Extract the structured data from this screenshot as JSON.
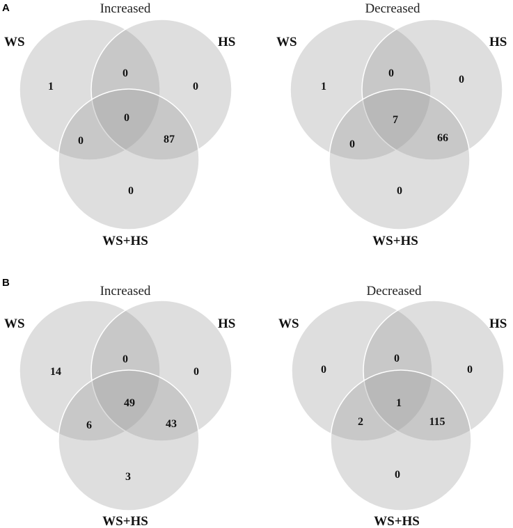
{
  "panels": [
    {
      "letter": "A",
      "venns": [
        {
          "title": "Increased",
          "labels": {
            "ws": "WS",
            "hs": "HS",
            "wshs": "WS+HS"
          },
          "counts": {
            "ws_only": "1",
            "hs_only": "0",
            "wshs_only": "0",
            "ws_hs": "0",
            "ws_wshs": "0",
            "hs_wshs": "87",
            "all": "0"
          }
        },
        {
          "title": "Decreased",
          "labels": {
            "ws": "WS",
            "hs": "HS",
            "wshs": "WS+HS"
          },
          "counts": {
            "ws_only": "1",
            "hs_only": "0",
            "wshs_only": "0",
            "ws_hs": "0",
            "ws_wshs": "0",
            "hs_wshs": "66",
            "all": "7"
          }
        }
      ]
    },
    {
      "letter": "B",
      "venns": [
        {
          "title": "Increased",
          "labels": {
            "ws": "WS",
            "hs": "HS",
            "wshs": "WS+HS"
          },
          "counts": {
            "ws_only": "14",
            "hs_only": "0",
            "wshs_only": "3",
            "ws_hs": "0",
            "ws_wshs": "6",
            "hs_wshs": "43",
            "all": "49"
          }
        },
        {
          "title": "Decreased",
          "labels": {
            "ws": "WS",
            "hs": "HS",
            "wshs": "WS+HS"
          },
          "counts": {
            "ws_only": "0",
            "hs_only": "0",
            "wshs_only": "0",
            "ws_hs": "0",
            "ws_wshs": "2",
            "hs_wshs": "115",
            "all": "1"
          }
        }
      ]
    }
  ]
}
